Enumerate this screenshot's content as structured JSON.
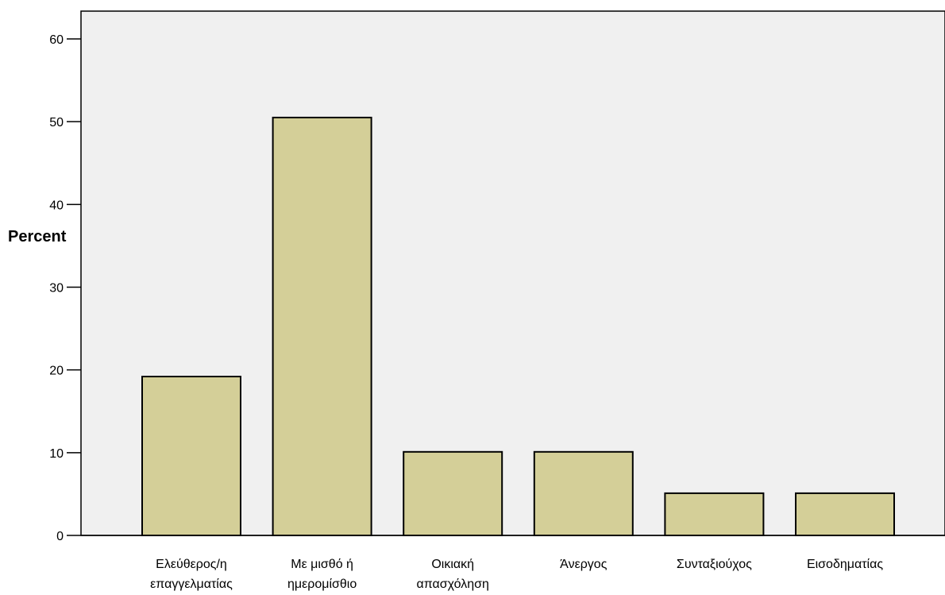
{
  "chart_data": {
    "type": "bar",
    "title": "",
    "xlabel": "",
    "ylabel": "Percent",
    "categories": [
      [
        "Ελεύθερος/η",
        "επαγγελματίας"
      ],
      [
        "Με μισθό ή",
        "ημερομίσθιο"
      ],
      [
        "Οικιακή",
        "απασχόληση"
      ],
      [
        "Άνεργος"
      ],
      [
        "Συνταξιούχος"
      ],
      [
        "Εισοδηματίας"
      ]
    ],
    "values": [
      19.2,
      50.5,
      10.1,
      10.1,
      5.1,
      5.1
    ],
    "ylim": [
      0,
      60
    ],
    "yticks": [
      0,
      10,
      20,
      30,
      40,
      50,
      60
    ],
    "grid": false,
    "legend": "none",
    "colors": {
      "bar_fill": "#d4cf98",
      "bar_stroke": "#000000",
      "plot_background": "#f0f0f0",
      "page_background": "#ffffff"
    }
  }
}
